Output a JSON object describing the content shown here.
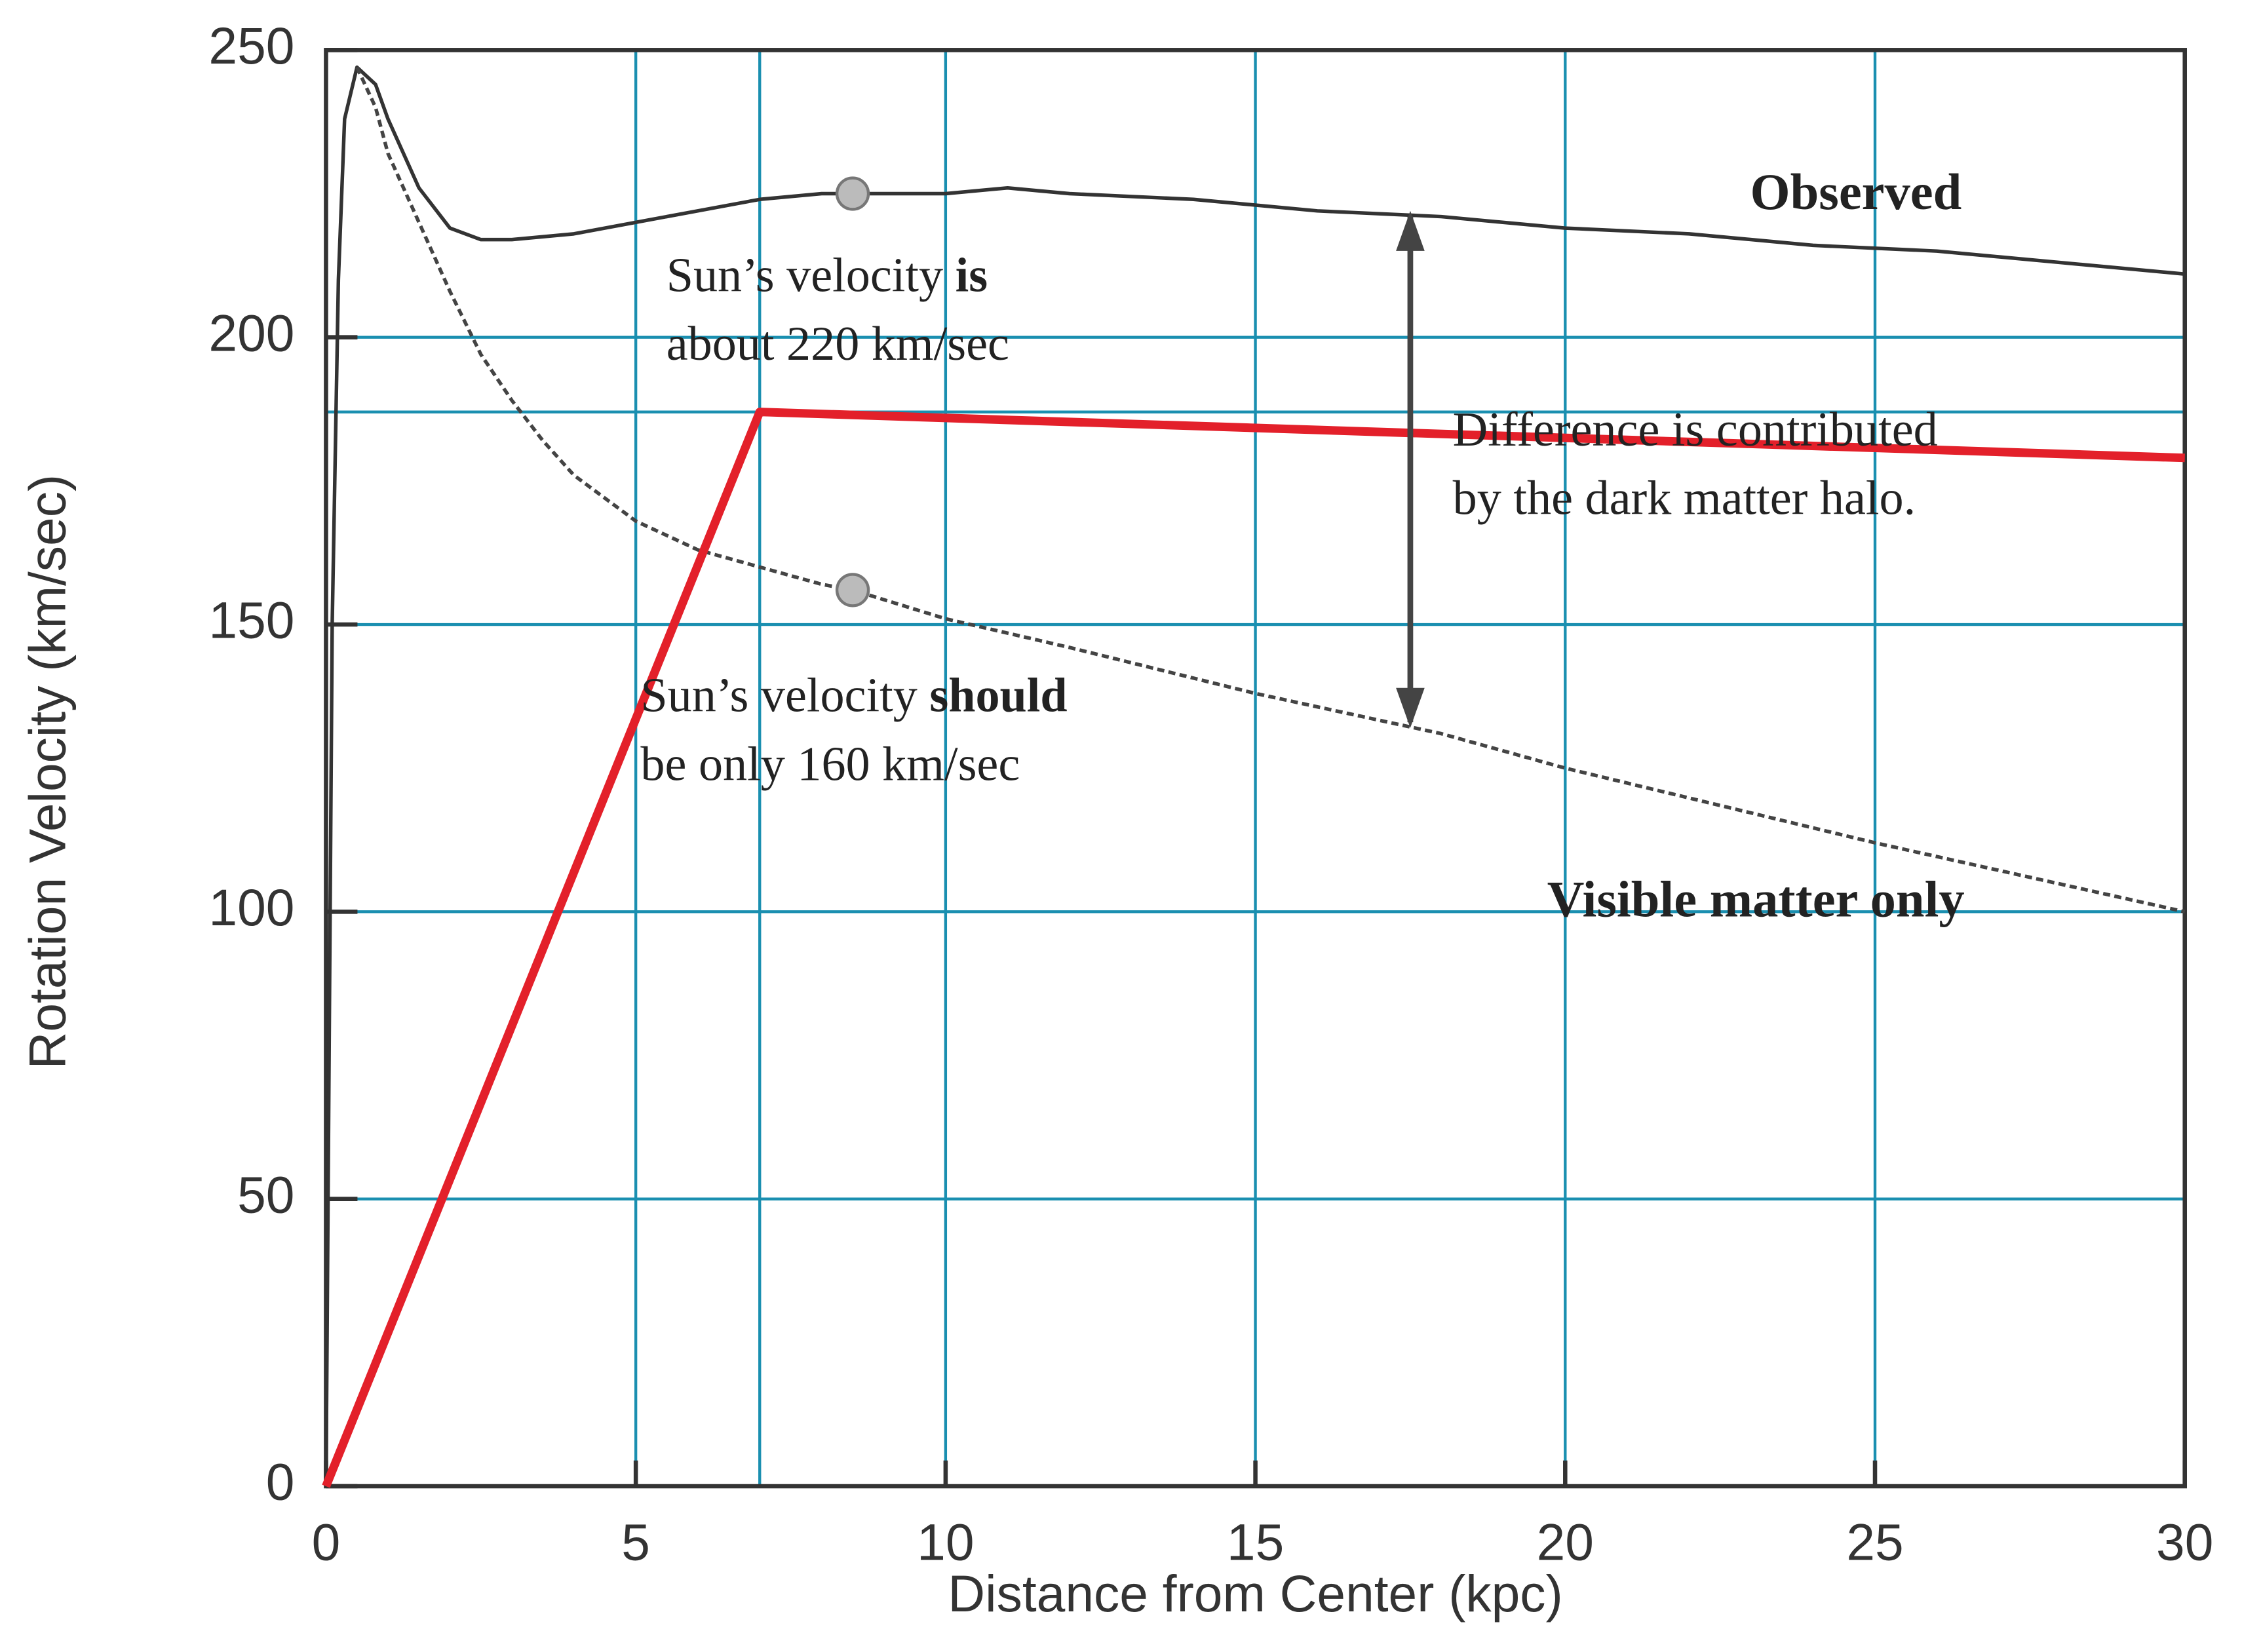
{
  "chart_data": {
    "type": "line",
    "xlabel": "Distance from Center (kpc)",
    "ylabel": "Rotation Velocity (km/sec)",
    "xlim": [
      0,
      30
    ],
    "ylim": [
      0,
      250
    ],
    "xticks": [
      0,
      5,
      10,
      15,
      20,
      25,
      30
    ],
    "yticks": [
      0,
      50,
      100,
      150,
      200,
      250
    ],
    "grid": true,
    "grid_color": "#1a8fb0",
    "reference_lines": {
      "x": [
        7
      ],
      "y": [
        187
      ]
    },
    "series": [
      {
        "name": "Observed",
        "color": "#333333",
        "dash": false,
        "x": [
          0,
          0.1,
          0.2,
          0.3,
          0.5,
          0.8,
          1,
          1.5,
          2,
          2.5,
          3,
          4,
          5,
          6,
          7,
          8,
          8.5,
          9,
          10,
          11,
          12,
          14,
          16,
          18,
          20,
          22,
          24,
          26,
          28,
          30
        ],
        "values": [
          0,
          150,
          210,
          238,
          247,
          244,
          238,
          226,
          219,
          217,
          217,
          218,
          220,
          222,
          224,
          225,
          225,
          225,
          225,
          226,
          225,
          224,
          222,
          221,
          219,
          218,
          216,
          215,
          213,
          211
        ]
      },
      {
        "name": "Visible matter only",
        "color": "#444444",
        "dash": true,
        "x": [
          0.5,
          0.8,
          1,
          1.5,
          2,
          2.5,
          3,
          3.5,
          4,
          5,
          6,
          7,
          8,
          8.5,
          10,
          12,
          15,
          18,
          20,
          25,
          30
        ],
        "values": [
          247,
          240,
          232,
          220,
          208,
          197,
          189,
          182,
          176,
          168,
          163,
          160,
          157,
          156,
          151,
          146,
          138,
          131,
          125,
          112,
          100
        ]
      },
      {
        "color": "#e3202a",
        "dash": false,
        "width": 6,
        "x": [
          0,
          7,
          30
        ],
        "values": [
          0,
          187,
          179
        ]
      }
    ],
    "markers": {
      "x": [
        8.5,
        8.5
      ],
      "values": [
        225,
        156
      ],
      "color": "#bbbbbb"
    },
    "arrow": {
      "x": 17.5,
      "values": [
        222,
        132
      ]
    },
    "annotations": [
      {
        "lines": [
          [
            {
              "text": "Sun’s velocity "
            },
            {
              "text": "is",
              "bold": true
            }
          ],
          [
            {
              "text": "about 220 km/sec"
            }
          ]
        ]
      },
      {
        "lines": [
          [
            {
              "text": "Sun’s velocity "
            },
            {
              "text": "should",
              "bold": true
            }
          ],
          [
            {
              "text": "be only 160 km/sec"
            }
          ]
        ]
      },
      {
        "lines": [
          [
            {
              "text": "Difference is contributed"
            }
          ],
          [
            {
              "text": "by the dark matter halo."
            }
          ]
        ]
      }
    ]
  }
}
